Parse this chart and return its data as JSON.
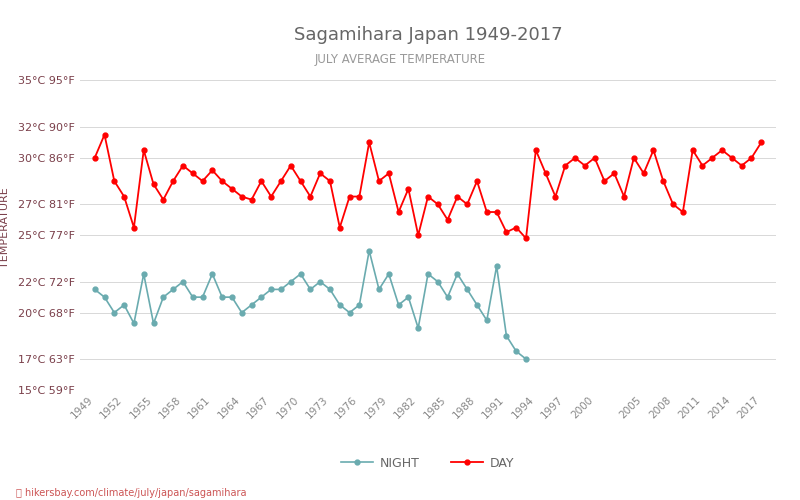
{
  "title": "Sagamihara Japan 1949-2017",
  "subtitle": "JULY AVERAGE TEMPERATURE",
  "ylabel": "TEMPERATURE",
  "watermark": "ⓘ hikersbay.com/climate/july/japan/sagamihara",
  "legend_night": "NIGHT",
  "legend_day": "DAY",
  "years_day": [
    1949,
    1950,
    1951,
    1952,
    1953,
    1954,
    1955,
    1956,
    1957,
    1958,
    1959,
    1960,
    1961,
    1962,
    1963,
    1964,
    1965,
    1966,
    1967,
    1968,
    1969,
    1970,
    1971,
    1972,
    1973,
    1974,
    1975,
    1976,
    1977,
    1978,
    1979,
    1980,
    1981,
    1982,
    1983,
    1984,
    1985,
    1986,
    1987,
    1988,
    1989,
    1990,
    1991,
    1992,
    1993,
    1994,
    1995,
    1996,
    1997,
    1998,
    1999,
    2000,
    2001,
    2002,
    2003,
    2004,
    2005,
    2006,
    2007,
    2008,
    2009,
    2010,
    2011,
    2012,
    2013,
    2014,
    2015,
    2016,
    2017
  ],
  "day_temps": [
    30.0,
    31.5,
    28.5,
    27.5,
    25.5,
    30.5,
    28.3,
    27.3,
    28.5,
    29.5,
    29.0,
    28.5,
    29.2,
    28.5,
    28.0,
    27.5,
    27.3,
    28.5,
    27.5,
    28.5,
    29.5,
    28.5,
    27.5,
    29.0,
    28.5,
    25.5,
    27.5,
    27.5,
    31.0,
    28.5,
    29.0,
    26.5,
    28.0,
    25.0,
    27.5,
    27.0,
    26.0,
    27.5,
    27.0,
    28.5,
    26.5,
    26.5,
    25.2,
    25.5,
    24.8,
    30.5,
    29.0,
    27.5,
    29.5,
    30.0,
    29.5,
    30.0,
    28.5,
    29.0,
    27.5,
    30.0,
    29.0,
    30.5,
    28.5,
    27.0,
    26.5,
    30.5,
    29.5,
    30.0,
    30.5,
    30.0,
    29.5,
    30.0,
    31.0
  ],
  "years_night": [
    1949,
    1950,
    1951,
    1952,
    1953,
    1954,
    1955,
    1956,
    1957,
    1958,
    1959,
    1960,
    1961,
    1962,
    1963,
    1964,
    1965,
    1966,
    1967,
    1968,
    1969,
    1970,
    1971,
    1972,
    1973,
    1974,
    1975,
    1976,
    1977,
    1978,
    1979,
    1980,
    1981,
    1982,
    1983,
    1984,
    1985,
    1986,
    1987,
    1988,
    1989,
    1990,
    1991,
    1992,
    1993
  ],
  "night_temps": [
    21.5,
    21.0,
    20.0,
    20.5,
    19.3,
    22.5,
    19.3,
    21.0,
    21.5,
    22.0,
    21.0,
    21.0,
    22.5,
    21.0,
    21.0,
    20.0,
    20.5,
    21.0,
    21.5,
    21.5,
    22.0,
    22.5,
    21.5,
    22.0,
    21.5,
    20.5,
    20.0,
    20.5,
    24.0,
    21.5,
    22.5,
    20.5,
    21.0,
    19.0,
    22.5,
    22.0,
    21.0,
    22.5,
    21.5,
    20.5,
    19.5,
    23.0,
    18.5,
    17.5,
    17.0
  ],
  "ylim_min": 15,
  "ylim_max": 36,
  "yticks_c": [
    15,
    17,
    20,
    22,
    25,
    27,
    30,
    32,
    35
  ],
  "ytick_labels": [
    "15°C 59°F",
    "17°C 63°F",
    "20°C 68°F",
    "22°C 72°F",
    "25°C 77°F",
    "27°C 81°F",
    "30°C 86°F",
    "32°C 90°F",
    "35°C 95°F"
  ],
  "xtick_years": [
    1949,
    1952,
    1955,
    1958,
    1961,
    1964,
    1967,
    1970,
    1973,
    1976,
    1979,
    1982,
    1985,
    1988,
    1991,
    1994,
    1997,
    2000,
    2005,
    2008,
    2011,
    2014,
    2017
  ],
  "xlim_min": 1947.5,
  "xlim_max": 2018.5,
  "day_color": "#ff0000",
  "night_color": "#6aabaf",
  "bg_color": "#ffffff",
  "grid_color": "#d8d8d8",
  "title_color": "#666666",
  "subtitle_color": "#999999",
  "ylabel_color": "#7a3f4a",
  "ytick_color": "#7a3f4a",
  "xtick_color": "#888888",
  "watermark_color": "#cc5555",
  "title_fontsize": 13,
  "subtitle_fontsize": 8.5,
  "ylabel_fontsize": 8,
  "ytick_fontsize": 8,
  "xtick_fontsize": 7.5,
  "legend_fontsize": 9
}
